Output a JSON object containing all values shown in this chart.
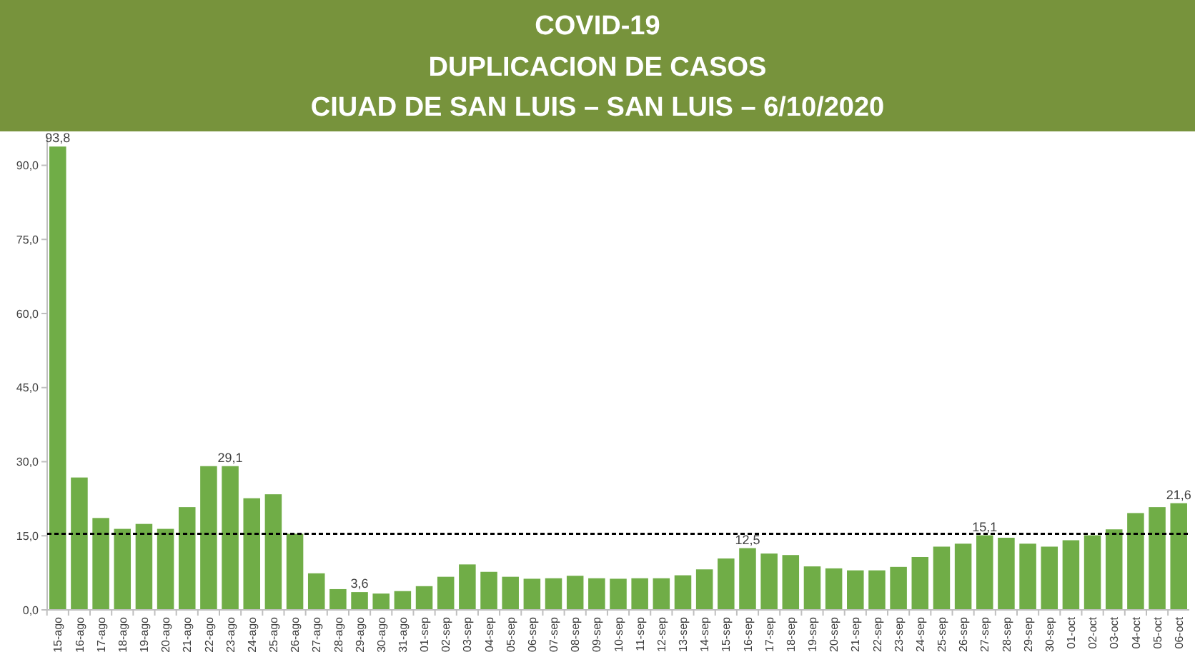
{
  "chart_data": {
    "type": "bar",
    "title": "COVID-19",
    "subtitle": "DUPLICACION DE CASOS\nCIUAD DE SAN LUIS – SAN LUIS – 6/10/2020",
    "categories": [
      "15-ago",
      "16-ago",
      "17-ago",
      "18-ago",
      "19-ago",
      "20-ago",
      "21-ago",
      "22-ago",
      "23-ago",
      "24-ago",
      "25-ago",
      "26-ago",
      "27-ago",
      "28-ago",
      "29-ago",
      "30-ago",
      "31-ago",
      "01-sep",
      "02-sep",
      "03-sep",
      "04-sep",
      "05-sep",
      "06-sep",
      "07-sep",
      "08-sep",
      "09-sep",
      "10-sep",
      "11-sep",
      "12-sep",
      "13-sep",
      "14-sep",
      "15-sep",
      "16-sep",
      "17-sep",
      "18-sep",
      "19-sep",
      "20-sep",
      "21-sep",
      "22-sep",
      "23-sep",
      "24-sep",
      "25-sep",
      "26-sep",
      "27-sep",
      "28-sep",
      "29-sep",
      "30-sep",
      "01-oct",
      "02-oct",
      "03-oct",
      "04-oct",
      "05-oct",
      "06-oct"
    ],
    "values": [
      93.8,
      26.8,
      18.6,
      16.4,
      17.4,
      16.4,
      20.8,
      29.1,
      29.1,
      22.6,
      23.4,
      15.4,
      7.4,
      4.2,
      3.6,
      3.3,
      3.8,
      4.8,
      6.7,
      9.2,
      7.7,
      6.7,
      6.3,
      6.4,
      6.9,
      6.4,
      6.3,
      6.4,
      6.4,
      7.0,
      8.2,
      10.4,
      12.5,
      11.4,
      11.1,
      8.8,
      8.4,
      8.0,
      8.0,
      8.7,
      10.7,
      12.8,
      13.4,
      15.1,
      14.6,
      13.4,
      12.8,
      14.1,
      15.1,
      16.3,
      19.6,
      20.8,
      21.6
    ],
    "value_labels": [
      "93,8",
      null,
      null,
      null,
      null,
      null,
      null,
      null,
      "29,1",
      null,
      null,
      null,
      null,
      null,
      "3,6",
      null,
      null,
      null,
      null,
      null,
      null,
      null,
      null,
      null,
      null,
      null,
      null,
      null,
      null,
      null,
      null,
      null,
      "12,5",
      null,
      null,
      null,
      null,
      null,
      null,
      null,
      null,
      null,
      null,
      "15,1",
      null,
      null,
      null,
      null,
      null,
      null,
      null,
      null,
      "21,6"
    ],
    "color": "#70ad47",
    "ylim": [
      0,
      96
    ],
    "yticks": [
      {
        "value": 0,
        "label": "0,0"
      },
      {
        "value": 15,
        "label": "15,0"
      },
      {
        "value": 30,
        "label": "30,0"
      },
      {
        "value": 45,
        "label": "45,0"
      },
      {
        "value": 60,
        "label": "60,0"
      },
      {
        "value": 75,
        "label": "75,0"
      },
      {
        "value": 90,
        "label": "90,0"
      }
    ],
    "ref_lines": [
      {
        "axis": "y",
        "value": 15.4,
        "color": "#000000",
        "line_style": "dashed"
      }
    ],
    "grid": false
  }
}
